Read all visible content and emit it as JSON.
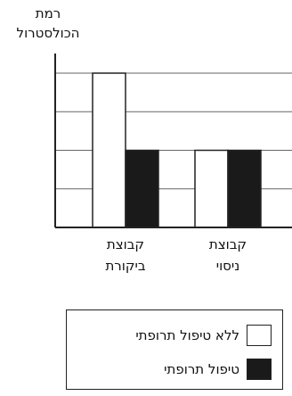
{
  "chart_data": {
    "type": "bar",
    "ylabel": "רמת\nהכולסטרול",
    "xlabel": "",
    "title": "",
    "categories": [
      "קבוצת\nביקורת",
      "קבוצת\nניסוי"
    ],
    "series": [
      {
        "name": "ללא טיפול תרופתי",
        "color": "#ffffff",
        "values": [
          4,
          2
        ]
      },
      {
        "name": "טיפול תרופתי",
        "color": "#1a1a1a",
        "values": [
          2,
          2
        ]
      }
    ],
    "ylim": [
      0,
      5
    ],
    "grid": true,
    "y_ticks_shown": false,
    "legend_position": "bottom"
  }
}
